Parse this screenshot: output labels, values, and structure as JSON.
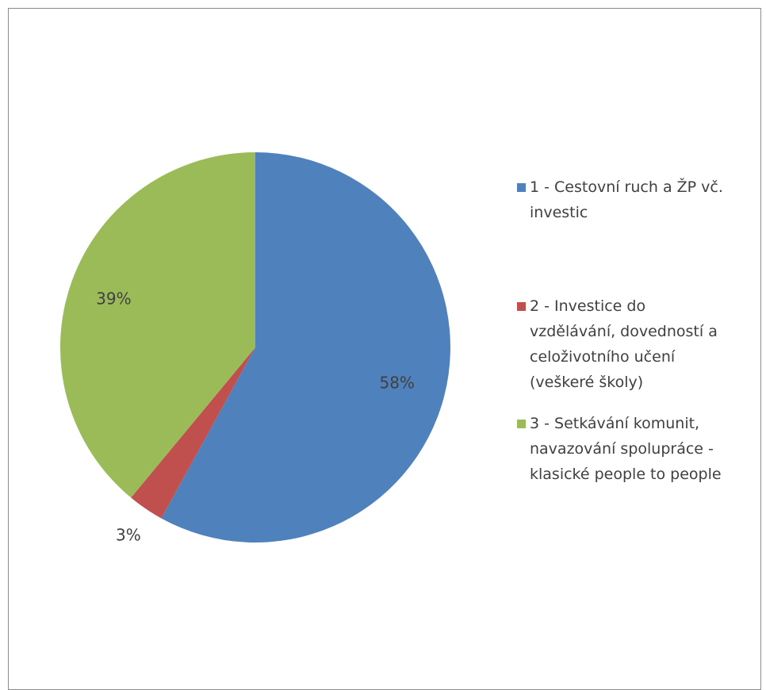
{
  "chart_data": {
    "type": "pie",
    "title": "",
    "categories": [
      "1 - Cestovní ruch a ŽP vč. investic",
      "2 - Investice do vzdělávání, dovedností a celoživotního učení (veškeré školy)",
      "3 - Setkávání komunit, navazování spolupráce - klasické people to people"
    ],
    "values": [
      58,
      3,
      39
    ],
    "data_labels": [
      "58%",
      "3%",
      "39%"
    ],
    "colors": [
      "#4f81bd",
      "#c0504d",
      "#9bbb59"
    ],
    "legend_position": "right"
  },
  "legend": {
    "items": [
      {
        "lines": [
          "1 - Cestovní ruch a ŽP vč.",
          "investic"
        ],
        "color": "#4f81bd"
      },
      {
        "lines": [
          "2 - Investice do",
          "vzdělávání, dovedností a",
          "celoživotního učení",
          "(veškeré školy)"
        ],
        "color": "#c0504d"
      },
      {
        "lines": [
          "3 - Setkávání komunit,",
          "navazování spolupráce -",
          "klasické people to people"
        ],
        "color": "#9bbb59"
      }
    ]
  }
}
